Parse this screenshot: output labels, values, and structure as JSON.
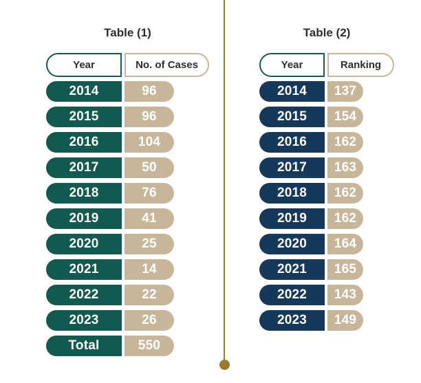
{
  "background": "#FFFFFF",
  "divider": {
    "color": "#9A7B2B"
  },
  "text_colors": {
    "heading": "#2D2D2D",
    "cell": "#FFFFFF"
  },
  "tables": [
    {
      "id": "table-1",
      "title": "Table (1)",
      "columns": {
        "year": "Year",
        "value": "No. of Cases"
      },
      "colors": {
        "year_fill": "#12594F",
        "value_fill": "#C7B699",
        "year_header_border": "#12594F",
        "value_header_border": "#C7B699"
      },
      "rows": [
        {
          "year": "2014",
          "value": "96"
        },
        {
          "year": "2015",
          "value": "96"
        },
        {
          "year": "2016",
          "value": "104"
        },
        {
          "year": "2017",
          "value": "50"
        },
        {
          "year": "2018",
          "value": "76"
        },
        {
          "year": "2019",
          "value": "41"
        },
        {
          "year": "2020",
          "value": "25"
        },
        {
          "year": "2021",
          "value": "14"
        },
        {
          "year": "2022",
          "value": "22"
        },
        {
          "year": "2023",
          "value": "26"
        },
        {
          "year": "Total",
          "value": "550"
        }
      ]
    },
    {
      "id": "table-2",
      "title": "Table (2)",
      "columns": {
        "year": "Year",
        "value": "Ranking"
      },
      "colors": {
        "year_fill": "#16395B",
        "value_fill": "#C7B699",
        "year_header_border": "#12594F",
        "value_header_border": "#C7B699"
      },
      "rows": [
        {
          "year": "2014",
          "value": "137"
        },
        {
          "year": "2015",
          "value": "154"
        },
        {
          "year": "2016",
          "value": "162"
        },
        {
          "year": "2017",
          "value": "163"
        },
        {
          "year": "2018",
          "value": "162"
        },
        {
          "year": "2019",
          "value": "162"
        },
        {
          "year": "2020",
          "value": "164"
        },
        {
          "year": "2021",
          "value": "165"
        },
        {
          "year": "2022",
          "value": "143"
        },
        {
          "year": "2023",
          "value": "149"
        }
      ]
    }
  ],
  "chart_data": [
    {
      "type": "table",
      "title": "Table (1)",
      "columns": [
        "Year",
        "No. of Cases"
      ],
      "categories": [
        "2014",
        "2015",
        "2016",
        "2017",
        "2018",
        "2019",
        "2020",
        "2021",
        "2022",
        "2023",
        "Total"
      ],
      "values": [
        96,
        96,
        104,
        50,
        76,
        41,
        25,
        14,
        22,
        26,
        550
      ]
    },
    {
      "type": "table",
      "title": "Table (2)",
      "columns": [
        "Year",
        "Ranking"
      ],
      "categories": [
        "2014",
        "2015",
        "2016",
        "2017",
        "2018",
        "2019",
        "2020",
        "2021",
        "2022",
        "2023"
      ],
      "values": [
        137,
        154,
        162,
        163,
        162,
        162,
        164,
        165,
        143,
        149
      ]
    }
  ]
}
